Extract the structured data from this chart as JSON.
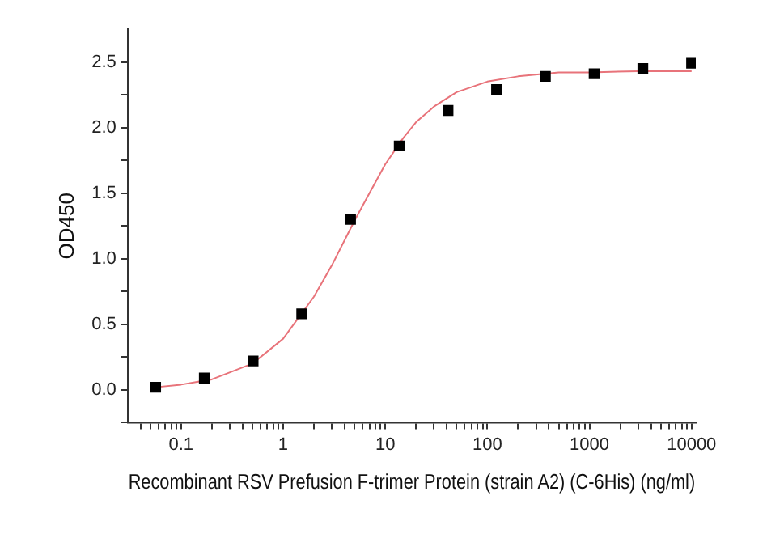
{
  "chart_data": {
    "type": "scatter",
    "xlabel": "Recombinant RSV Prefusion F-trimer Protein (strain A2) (C-6His) (ng/ml)",
    "ylabel": "OD450",
    "log": "x",
    "grid": false,
    "legend": false,
    "marker": "square",
    "xlim": [
      0.03,
      11000
    ],
    "ylim": [
      -0.25,
      2.75
    ],
    "xticks": [
      {
        "value": 0.04,
        "label": null
      },
      {
        "value": 0.05,
        "label": null
      },
      {
        "value": 0.06,
        "label": null
      },
      {
        "value": 0.07,
        "label": null
      },
      {
        "value": 0.08,
        "label": null
      },
      {
        "value": 0.09,
        "label": null
      },
      0.1,
      {
        "value": 0.2,
        "label": null
      },
      {
        "value": 0.3,
        "label": null
      },
      {
        "value": 0.4,
        "label": null
      },
      {
        "value": 0.5,
        "label": null
      },
      {
        "value": 0.6,
        "label": null
      },
      {
        "value": 0.7,
        "label": null
      },
      {
        "value": 0.8,
        "label": null
      },
      {
        "value": 0.9,
        "label": null
      },
      1,
      {
        "value": 2,
        "label": null
      },
      {
        "value": 3,
        "label": null
      },
      {
        "value": 4,
        "label": null
      },
      {
        "value": 5,
        "label": null
      },
      {
        "value": 6,
        "label": null
      },
      {
        "value": 7,
        "label": null
      },
      {
        "value": 8,
        "label": null
      },
      {
        "value": 9,
        "label": null
      },
      10,
      {
        "value": 20,
        "label": null
      },
      {
        "value": 30,
        "label": null
      },
      {
        "value": 40,
        "label": null
      },
      {
        "value": 50,
        "label": null
      },
      {
        "value": 60,
        "label": null
      },
      {
        "value": 70,
        "label": null
      },
      {
        "value": 80,
        "label": null
      },
      {
        "value": 90,
        "label": null
      },
      100,
      {
        "value": 200,
        "label": null
      },
      {
        "value": 300,
        "label": null
      },
      {
        "value": 400,
        "label": null
      },
      {
        "value": 500,
        "label": null
      },
      {
        "value": 600,
        "label": null
      },
      {
        "value": 700,
        "label": null
      },
      {
        "value": 800,
        "label": null
      },
      {
        "value": 900,
        "label": null
      },
      1000,
      {
        "value": 2000,
        "label": null
      },
      {
        "value": 3000,
        "label": null
      },
      {
        "value": 4000,
        "label": null
      },
      {
        "value": 5000,
        "label": null
      },
      {
        "value": 6000,
        "label": null
      },
      {
        "value": 7000,
        "label": null
      },
      {
        "value": 8000,
        "label": null
      },
      {
        "value": 9000,
        "label": null
      },
      10000
    ],
    "yticks": [
      {
        "value": -0.25,
        "label": null
      },
      {
        "value": 0,
        "label": "0.0"
      },
      {
        "value": 0.25,
        "label": null
      },
      {
        "value": 0.5,
        "label": "0.5"
      },
      {
        "value": 0.75,
        "label": null
      },
      {
        "value": 1,
        "label": "1.0"
      },
      {
        "value": 1.25,
        "label": null
      },
      {
        "value": 1.5,
        "label": "1.5"
      },
      {
        "value": 1.75,
        "label": null
      },
      {
        "value": 2,
        "label": "2.0"
      },
      {
        "value": 2.25,
        "label": null
      },
      {
        "value": 2.5,
        "label": "2.5"
      }
    ],
    "series": [
      {
        "type": "line",
        "color": "#e8737a",
        "marker": "none",
        "x": [
          0.056,
          0.1,
          0.2,
          0.5,
          1,
          2,
          3,
          5,
          7,
          10,
          15,
          20,
          30,
          50,
          100,
          200,
          500,
          1000,
          3000,
          10000
        ],
        "values": [
          0.02,
          0.04,
          0.08,
          0.2,
          0.39,
          0.71,
          0.95,
          1.29,
          1.5,
          1.72,
          1.92,
          2.04,
          2.16,
          2.27,
          2.35,
          2.39,
          2.42,
          2.42,
          2.43,
          2.43
        ]
      },
      {
        "type": "scatter",
        "color": "#000000",
        "x": [
          0.0564,
          0.169,
          0.508,
          1.52,
          4.57,
          13.7,
          41.2,
          123,
          370,
          1111,
          3333,
          10000
        ],
        "values": [
          0.02,
          0.09,
          0.22,
          0.58,
          1.3,
          1.86,
          2.13,
          2.29,
          2.39,
          2.41,
          2.45,
          2.49
        ]
      }
    ]
  }
}
